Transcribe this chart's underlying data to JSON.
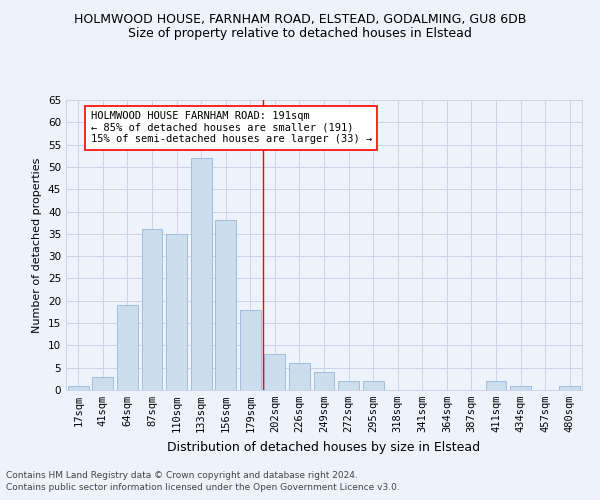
{
  "title1": "HOLMWOOD HOUSE, FARNHAM ROAD, ELSTEAD, GODALMING, GU8 6DB",
  "title2": "Size of property relative to detached houses in Elstead",
  "xlabel": "Distribution of detached houses by size in Elstead",
  "ylabel": "Number of detached properties",
  "footnote1": "Contains HM Land Registry data © Crown copyright and database right 2024.",
  "footnote2": "Contains public sector information licensed under the Open Government Licence v3.0.",
  "bar_labels": [
    "17sqm",
    "41sqm",
    "64sqm",
    "87sqm",
    "110sqm",
    "133sqm",
    "156sqm",
    "179sqm",
    "202sqm",
    "226sqm",
    "249sqm",
    "272sqm",
    "295sqm",
    "318sqm",
    "341sqm",
    "364sqm",
    "387sqm",
    "411sqm",
    "434sqm",
    "457sqm",
    "480sqm"
  ],
  "bar_values": [
    1,
    3,
    19,
    36,
    35,
    52,
    38,
    18,
    8,
    6,
    4,
    2,
    2,
    0,
    0,
    0,
    0,
    2,
    1,
    0,
    1
  ],
  "bar_color": "#ccdded",
  "bar_edgecolor": "#a0bedb",
  "grid_color": "#c8d4e8",
  "vline_color": "red",
  "annotation_text": "HOLMWOOD HOUSE FARNHAM ROAD: 191sqm\n← 85% of detached houses are smaller (191)\n15% of semi-detached houses are larger (33) →",
  "annotation_box_edgecolor": "red",
  "annotation_box_facecolor": "white",
  "ylim": [
    0,
    65
  ],
  "yticks": [
    0,
    5,
    10,
    15,
    20,
    25,
    30,
    35,
    40,
    45,
    50,
    55,
    60,
    65
  ],
  "title1_fontsize": 9,
  "title2_fontsize": 9,
  "xlabel_fontsize": 9,
  "ylabel_fontsize": 8,
  "annotation_fontsize": 7.5,
  "tick_fontsize": 7.5,
  "footnote_fontsize": 6.5,
  "background_color": "#eef2fa"
}
